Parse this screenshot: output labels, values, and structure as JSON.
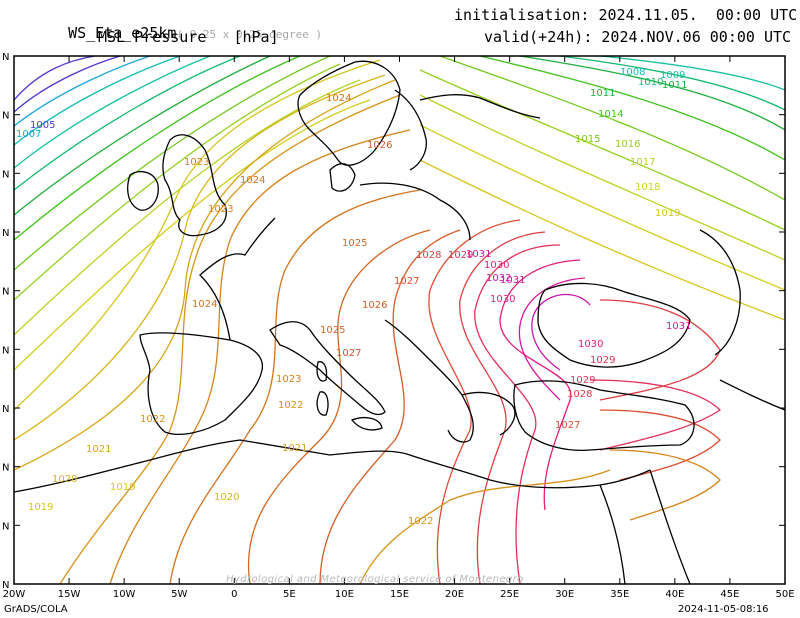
{
  "header": {
    "model": "WS_Eta_e25km",
    "resolution": "( 0.25 x 0.25 degree )",
    "field": "MSL Pressure   [hPa]",
    "init_label": "initialisation:",
    "init_value": "2024.11.05.  00:00 UTC",
    "valid_label": "valid(+24h):",
    "valid_value": "2024.NOV.06 00:00 UTC"
  },
  "footer": {
    "software": "GrADS/COLA",
    "timestamp": "2024-11-05-08:16",
    "watermark": "Hydrological and Meteorological service of Montenegro"
  },
  "axes": {
    "x_ticks": [
      "20W",
      "15W",
      "10W",
      "5W",
      "0",
      "5E",
      "10E",
      "15E",
      "20E",
      "25E",
      "30E",
      "35E",
      "40E",
      "45E",
      "50E"
    ],
    "y_ticks": [
      "N",
      "N",
      "N",
      "N",
      "N",
      "N",
      "N",
      "N",
      "N",
      "N"
    ]
  },
  "colors": {
    "c1005": "#4a3ad0",
    "c1007": "#1aa6d8",
    "c1008": "#12bcb4",
    "c1009": "#19c0a0",
    "c1010": "#13b96f",
    "c1011": "#1fae3c",
    "c1014": "#3ec21a",
    "c1015": "#74c81e",
    "c1016": "#95cf20",
    "c1017": "#b6d426",
    "c1018": "#cfcf1e",
    "c1019": "#d6c51a",
    "c1020": "#d9b517",
    "c1021": "#d7a317",
    "c1022": "#d69218",
    "c1023": "#d5821a",
    "c1024": "#d4731c",
    "c1025": "#d3661f",
    "c1026": "#d65a25",
    "c1027": "#dc4c31",
    "c1028": "#e03d42",
    "c1029": "#e2305a",
    "c1030": "#e01f79",
    "c1031": "#d8159a",
    "c1032": "#c812b0"
  },
  "isobar_labels": [
    {
      "text": "1005",
      "color": "#4a3ad0"
    },
    {
      "text": "1007",
      "color": "#1aa6d8"
    },
    {
      "text": "1008",
      "color": "#12bcb4"
    },
    {
      "text": "1009",
      "color": "#19c0a0"
    },
    {
      "text": "1010",
      "color": "#13b96f"
    },
    {
      "text": "1011",
      "color": "#1fae3c"
    },
    {
      "text": "1011",
      "color": "#1fae3c"
    },
    {
      "text": "1014",
      "color": "#3ec21a"
    },
    {
      "text": "1015",
      "color": "#74c81e"
    },
    {
      "text": "1016",
      "color": "#95cf20"
    },
    {
      "text": "1017",
      "color": "#b6d426"
    },
    {
      "text": "1018",
      "color": "#cfcf1e"
    },
    {
      "text": "1019",
      "color": "#d6c51a"
    },
    {
      "text": "1019",
      "color": "#d6c51a"
    },
    {
      "text": "1019",
      "color": "#d6c51a"
    },
    {
      "text": "1020",
      "color": "#d9b517"
    },
    {
      "text": "1020",
      "color": "#d9b517"
    },
    {
      "text": "1021",
      "color": "#d7a317"
    },
    {
      "text": "1021",
      "color": "#d7a317"
    },
    {
      "text": "1022",
      "color": "#d69218"
    },
    {
      "text": "1022",
      "color": "#d69218"
    },
    {
      "text": "1022",
      "color": "#d69218"
    },
    {
      "text": "1023",
      "color": "#d5821a"
    },
    {
      "text": "1023",
      "color": "#d5821a"
    },
    {
      "text": "1023",
      "color": "#d5821a"
    },
    {
      "text": "1024",
      "color": "#d4731c"
    },
    {
      "text": "1024",
      "color": "#d4731c"
    },
    {
      "text": "1024",
      "color": "#d4731c"
    },
    {
      "text": "1025",
      "color": "#d3661f"
    },
    {
      "text": "1025",
      "color": "#d3661f"
    },
    {
      "text": "1026",
      "color": "#d65a25"
    },
    {
      "text": "1026",
      "color": "#d65a25"
    },
    {
      "text": "1027",
      "color": "#dc4c31"
    },
    {
      "text": "1027",
      "color": "#dc4c31"
    },
    {
      "text": "1027",
      "color": "#dc4c31"
    },
    {
      "text": "1028",
      "color": "#e03d42"
    },
    {
      "text": "1028",
      "color": "#e03d42"
    },
    {
      "text": "1029",
      "color": "#e2305a"
    },
    {
      "text": "1029",
      "color": "#e2305a"
    },
    {
      "text": "1029",
      "color": "#e2305a"
    },
    {
      "text": "1030",
      "color": "#e01f79"
    },
    {
      "text": "1030",
      "color": "#e01f79"
    },
    {
      "text": "1030",
      "color": "#e01f79"
    },
    {
      "text": "1031",
      "color": "#d8159a"
    },
    {
      "text": "1031",
      "color": "#d8159a"
    },
    {
      "text": "1031",
      "color": "#d8159a"
    },
    {
      "text": "1032",
      "color": "#c812b0"
    }
  ]
}
